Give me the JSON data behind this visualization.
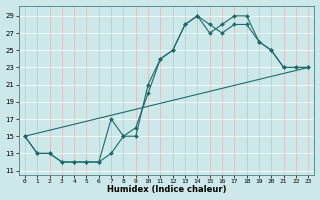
{
  "bg_color": "#cde8e8",
  "grid_color": "#b0d8d8",
  "line_color": "#1a6b6b",
  "xlabel": "Humidex (Indice chaleur)",
  "xlim": [
    -0.5,
    23.5
  ],
  "ylim": [
    10.5,
    30.2
  ],
  "xticks": [
    0,
    1,
    2,
    3,
    4,
    5,
    6,
    7,
    8,
    9,
    10,
    11,
    12,
    13,
    14,
    15,
    16,
    17,
    18,
    19,
    20,
    21,
    22,
    23
  ],
  "yticks": [
    11,
    13,
    15,
    17,
    19,
    21,
    23,
    25,
    27,
    29
  ],
  "line1_x": [
    0,
    1,
    2,
    3,
    4,
    5,
    6,
    7,
    8,
    9,
    10,
    11,
    12,
    13,
    14,
    15,
    16,
    17,
    18,
    19,
    20,
    21,
    22,
    23
  ],
  "line1_y": [
    15,
    13,
    13,
    12,
    12,
    12,
    12,
    13,
    15,
    16,
    20,
    24,
    25,
    28,
    29,
    27,
    28,
    29,
    29,
    26,
    25,
    23,
    23,
    23
  ],
  "line2_x": [
    0,
    1,
    2,
    3,
    4,
    5,
    6,
    7,
    8,
    9,
    10,
    11,
    12,
    13,
    14,
    15,
    16,
    17,
    18,
    19,
    20,
    21,
    22,
    23
  ],
  "line2_y": [
    15,
    13,
    13,
    12,
    12,
    12,
    12,
    17,
    15,
    15,
    21,
    24,
    25,
    28,
    29,
    28,
    27,
    28,
    28,
    26,
    25,
    23,
    23,
    23
  ],
  "line3_x": [
    0,
    23
  ],
  "line3_y": [
    15,
    23
  ]
}
